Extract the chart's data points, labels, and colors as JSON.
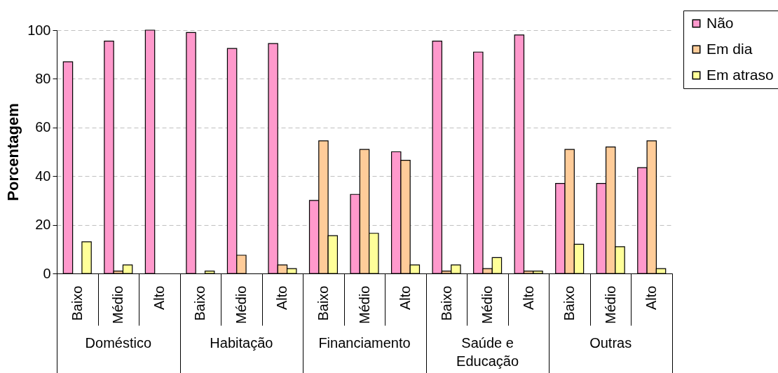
{
  "chart_data": {
    "type": "bar",
    "ylabel": "Porcentagem",
    "categories": [
      "Baixo",
      "Médio",
      "Alto",
      "Baixo",
      "Médio",
      "Alto",
      "Baixo",
      "Médio",
      "Alto",
      "Baixo",
      "Médio",
      "Alto",
      "Baixo",
      "Médio",
      "Alto"
    ],
    "annotations": [
      "Doméstico",
      "Habitação",
      "Financiamento",
      "Saúde e Educação",
      "Outras"
    ],
    "series": [
      {
        "name": "Não",
        "color": "#ff99cc",
        "values": [
          87,
          95.5,
          100,
          99,
          92.5,
          94.5,
          30,
          32.5,
          50,
          95.5,
          91,
          98,
          37,
          37,
          43.5
        ]
      },
      {
        "name": "Em dia",
        "color": "#ffcc99",
        "values": [
          null,
          1,
          null,
          null,
          7.5,
          3.5,
          54.5,
          51,
          46.5,
          1,
          2,
          1,
          51,
          52,
          54.5
        ]
      },
      {
        "name": "Em atraso",
        "color": "#ffff99",
        "values": [
          13,
          3.5,
          null,
          1,
          null,
          2,
          15.5,
          16.5,
          3.5,
          3.5,
          6.5,
          1,
          12,
          11,
          2
        ]
      }
    ],
    "ylim": [
      0,
      100
    ],
    "yticks": [
      0,
      20,
      40,
      60,
      80,
      100
    ],
    "grid": "y",
    "legend": "top right"
  }
}
